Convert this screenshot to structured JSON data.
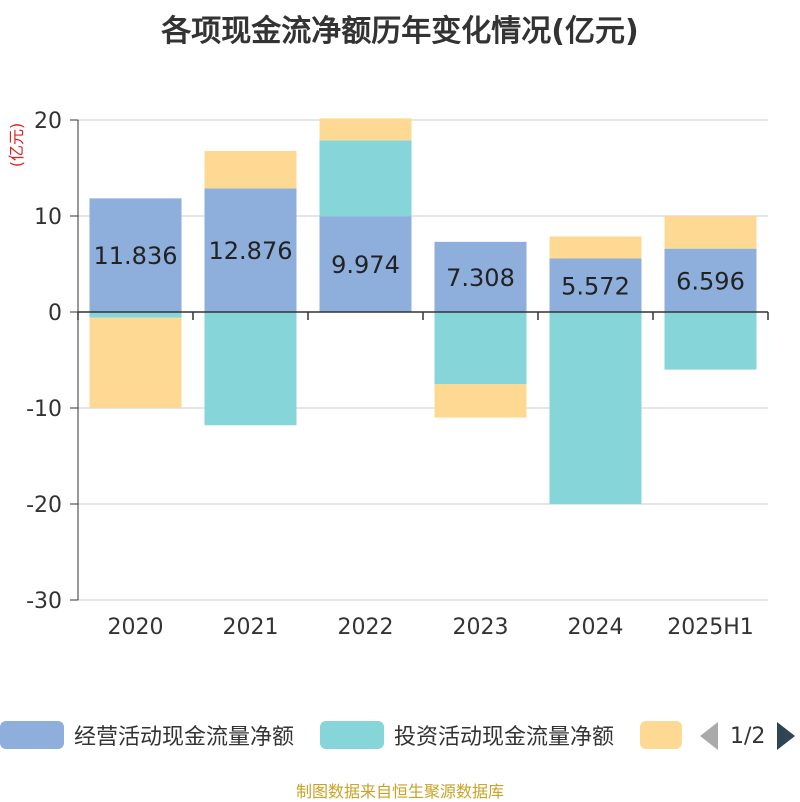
{
  "title": "各项现金流净额历年变化情况(亿元)",
  "footer": "制图数据来自恒生聚源数据库",
  "legend": {
    "pager_text": "1/2"
  },
  "chart_data": {
    "type": "bar",
    "stacked": true,
    "categories": [
      "2020",
      "2021",
      "2022",
      "2023",
      "2024",
      "2025H1"
    ],
    "ylabel": "(亿元)",
    "ylim": [
      -30,
      20
    ],
    "yticks": [
      20,
      10,
      0,
      -10,
      -20,
      -30
    ],
    "grid": true,
    "legend_position": "bottom",
    "series": [
      {
        "name": "经营活动现金流量净额",
        "color": "#8eaedc",
        "values": [
          11.836,
          12.876,
          9.974,
          7.308,
          5.572,
          6.596
        ],
        "labels": [
          "11.836",
          "12.876",
          "9.974",
          "7.308",
          "5.572",
          "6.596"
        ]
      },
      {
        "name": "投资活动现金流量净额",
        "color": "#86d6d9",
        "values": [
          -0.6,
          -11.8,
          7.9,
          -7.5,
          -20.0,
          -6.0
        ]
      },
      {
        "name": "",
        "color": "#fed994",
        "values": [
          -9.4,
          3.9,
          2.3,
          -3.5,
          2.3,
          3.4
        ]
      }
    ]
  }
}
